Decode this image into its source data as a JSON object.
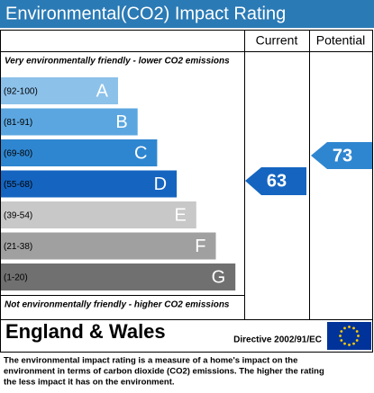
{
  "header": {
    "title": "Environmental(CO2) Impact Rating"
  },
  "columns": [
    "Current",
    "Potential"
  ],
  "top_note": "Very environmentally friendly - lower CO2 emissions",
  "bottom_note": "Not environmentally friendly - higher CO2 emissions",
  "bands": [
    {
      "range": "(92-100)",
      "letter": "A",
      "color": "#8cc1ea"
    },
    {
      "range": "(81-91)",
      "letter": "B",
      "color": "#5ba6e0"
    },
    {
      "range": "(69-80)",
      "letter": "C",
      "color": "#2f86d0"
    },
    {
      "range": "(55-68)",
      "letter": "D",
      "color": "#1565c0"
    },
    {
      "range": "(39-54)",
      "letter": "E",
      "color": "#c8c8c8"
    },
    {
      "range": "(21-38)",
      "letter": "F",
      "color": "#a0a0a0"
    },
    {
      "range": "(1-20)",
      "letter": "G",
      "color": "#707070"
    }
  ],
  "current": 63,
  "potential": 73,
  "footer": {
    "region": "England & Wales",
    "directive": "Directive 2002/91/EC"
  },
  "description": [
    "The environmental impact rating is a measure of a home's impact on the",
    "environment in terms of carbon dioxide (CO2) emissions. The higher the rating",
    "the less impact it has on the environment."
  ]
}
